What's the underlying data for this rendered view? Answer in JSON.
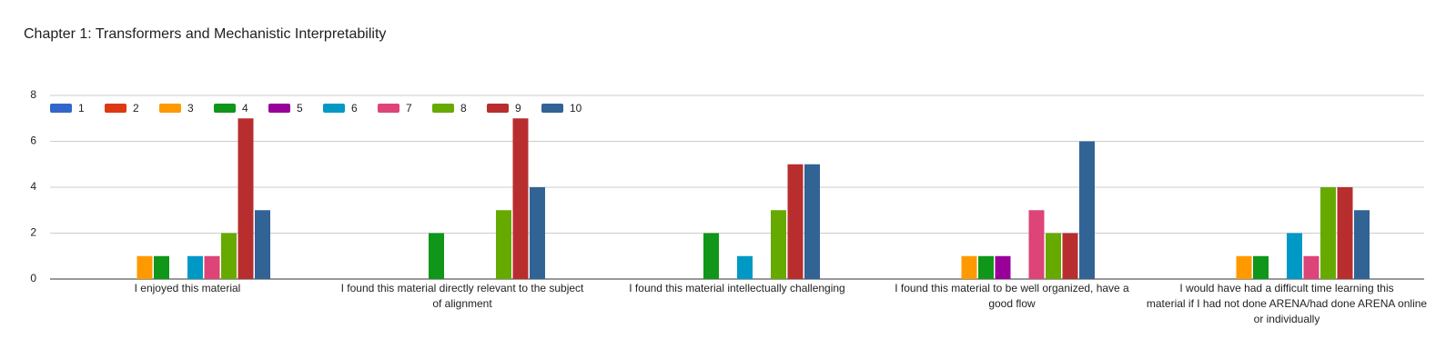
{
  "chart_data": {
    "type": "bar",
    "title": "Chapter 1: Transformers and Mechanistic Interpretability",
    "categories": [
      "I enjoyed this material",
      "I found this material directly relevant to the subject of alignment",
      "I found this material intellectually challenging",
      "I found this material to be well organized, have a good flow",
      "I would have had a difficult time learning this material if I had not done ARENA/had done ARENA online or individually"
    ],
    "series": [
      {
        "name": "1",
        "color": "#3366cc",
        "values": [
          0,
          0,
          0,
          0,
          0
        ]
      },
      {
        "name": "2",
        "color": "#dc3912",
        "values": [
          0,
          0,
          0,
          0,
          0
        ]
      },
      {
        "name": "3",
        "color": "#ff9900",
        "values": [
          1,
          0,
          0,
          1,
          1
        ]
      },
      {
        "name": "4",
        "color": "#109618",
        "values": [
          1,
          2,
          2,
          1,
          1
        ]
      },
      {
        "name": "5",
        "color": "#990099",
        "values": [
          0,
          0,
          0,
          1,
          0
        ]
      },
      {
        "name": "6",
        "color": "#0099c6",
        "values": [
          1,
          0,
          1,
          0,
          2
        ]
      },
      {
        "name": "7",
        "color": "#dd4477",
        "values": [
          1,
          0,
          0,
          3,
          1
        ]
      },
      {
        "name": "8",
        "color": "#66aa00",
        "values": [
          2,
          3,
          3,
          2,
          4
        ]
      },
      {
        "name": "9",
        "color": "#b82e2e",
        "values": [
          7,
          7,
          5,
          2,
          4
        ]
      },
      {
        "name": "10",
        "color": "#316395",
        "values": [
          3,
          4,
          5,
          6,
          3
        ]
      }
    ],
    "ylim": [
      0,
      8
    ],
    "yticks": [
      0,
      2,
      4,
      6,
      8
    ],
    "grid": true,
    "legend": "top-left"
  }
}
